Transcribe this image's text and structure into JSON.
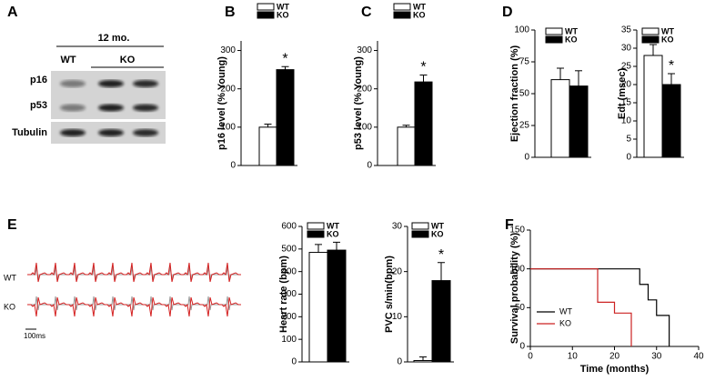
{
  "panel_labels": [
    "A",
    "B",
    "C",
    "D",
    "E",
    "F"
  ],
  "blot": {
    "age": "12 mo.",
    "groups": [
      "WT",
      "KO"
    ],
    "proteins": [
      "p16",
      "p53",
      "Tubulin"
    ]
  },
  "ecg": {
    "traces": [
      "WT",
      "KO"
    ],
    "scale": "100ms"
  },
  "chart_data": [
    {
      "type": "bar",
      "ylabel": "p16 level (% Young)",
      "ylim": [
        0,
        325
      ],
      "yticks": [
        0,
        100,
        200,
        300
      ],
      "annotation": "*",
      "series": [
        {
          "name": "WT",
          "color": "#ffffff",
          "values": [
            100
          ],
          "errors": [
            8
          ]
        },
        {
          "name": "KO",
          "color": "#000000",
          "values": [
            250
          ],
          "errors": [
            8
          ]
        }
      ]
    },
    {
      "type": "bar",
      "ylabel": "p53 level (% Young)",
      "ylim": [
        0,
        325
      ],
      "yticks": [
        0,
        100,
        200,
        300
      ],
      "annotation": "*",
      "series": [
        {
          "name": "WT",
          "color": "#ffffff",
          "values": [
            100
          ],
          "errors": [
            5
          ]
        },
        {
          "name": "KO",
          "color": "#000000",
          "values": [
            218
          ],
          "errors": [
            18
          ]
        }
      ]
    },
    {
      "type": "bar",
      "ylabel": "Ejection fraction (%)",
      "ylim": [
        0,
        100
      ],
      "yticks": [
        0,
        25,
        50,
        75,
        100
      ],
      "series": [
        {
          "name": "WT",
          "color": "#ffffff",
          "values": [
            61
          ],
          "errors": [
            9
          ]
        },
        {
          "name": "KO",
          "color": "#000000",
          "values": [
            56
          ],
          "errors": [
            12
          ]
        }
      ]
    },
    {
      "type": "bar",
      "ylabel": "Edt (msec)",
      "ylim": [
        0,
        35
      ],
      "yticks": [
        0,
        5,
        10,
        15,
        20,
        25,
        30,
        35
      ],
      "annotation": "*",
      "series": [
        {
          "name": "WT",
          "color": "#ffffff",
          "values": [
            28
          ],
          "errors": [
            3
          ]
        },
        {
          "name": "KO",
          "color": "#000000",
          "values": [
            20
          ],
          "errors": [
            3
          ]
        }
      ]
    },
    {
      "type": "bar",
      "ylabel": "Heart rate (bpm)",
      "ylim": [
        0,
        600
      ],
      "yticks": [
        0,
        100,
        200,
        300,
        400,
        500,
        600
      ],
      "series": [
        {
          "name": "WT",
          "color": "#ffffff",
          "values": [
            485
          ],
          "errors": [
            35
          ]
        },
        {
          "name": "KO",
          "color": "#000000",
          "values": [
            495
          ],
          "errors": [
            35
          ]
        }
      ]
    },
    {
      "type": "bar",
      "ylabel": "PVC s/min(bpm)",
      "ylim": [
        0,
        30
      ],
      "yticks": [
        0,
        10,
        20,
        30
      ],
      "annotation": "*",
      "series": [
        {
          "name": "WT",
          "color": "#ffffff",
          "values": [
            0.3
          ],
          "errors": [
            0.8
          ]
        },
        {
          "name": "KO",
          "color": "#000000",
          "values": [
            18
          ],
          "errors": [
            4
          ]
        }
      ]
    },
    {
      "type": "line",
      "ylabel": "Survival probability (%)",
      "xlabel": "Time (months)",
      "xlim": [
        0,
        40
      ],
      "xticks": [
        0,
        10,
        20,
        30,
        40
      ],
      "ylim": [
        0,
        150
      ],
      "yticks": [
        0,
        50,
        100,
        150
      ],
      "series": [
        {
          "name": "WT",
          "color": "#000000",
          "x": [
            0,
            26,
            26,
            28,
            28,
            30,
            30,
            33,
            33
          ],
          "values": [
            100,
            100,
            80,
            80,
            60,
            60,
            40,
            40,
            0
          ]
        },
        {
          "name": "KO",
          "color": "#cc2222",
          "x": [
            0,
            16,
            16,
            20,
            20,
            24,
            24
          ],
          "values": [
            100,
            100,
            57,
            57,
            43,
            43,
            0
          ]
        }
      ]
    }
  ]
}
